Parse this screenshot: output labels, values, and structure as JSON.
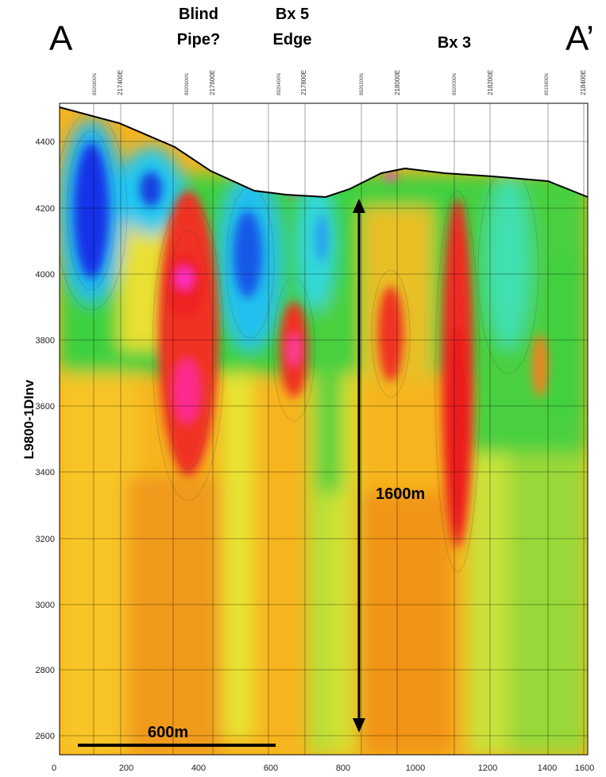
{
  "section_start_label": "A",
  "section_end_label": "A’",
  "feature_labels": [
    {
      "line1": "Blind",
      "line2": "Pipe?"
    },
    {
      "line1": "Bx 5",
      "line2": "Edge"
    },
    {
      "line1": "Bx 3",
      "line2": ""
    }
  ],
  "y_axis_title": "L9800-1DInv",
  "y_ticks": [
    "4400",
    "4200",
    "4000",
    "3800",
    "3600",
    "3400",
    "3200",
    "3000",
    "2800",
    "2600"
  ],
  "x_ticks": [
    "0",
    "200",
    "400",
    "600",
    "800",
    "1000",
    "1200",
    "1400",
    "1600"
  ],
  "easting_labels": [
    "217400E",
    "217600E",
    "217800E",
    "218000E",
    "218200E",
    "218400E"
  ],
  "northing_labels": [
    "8920800N",
    "8920600N",
    "8920400N",
    "8920200N",
    "8920000N",
    "8919800N"
  ],
  "scale_bar_label": "600m",
  "depth_arrow_label": "1600m",
  "colors": {
    "low": "#1030e0",
    "cyan": "#20e0f0",
    "green": "#30d040",
    "yellow": "#f0f020",
    "orange": "#f8a020",
    "red": "#f02020",
    "magenta": "#ff30d0"
  }
}
